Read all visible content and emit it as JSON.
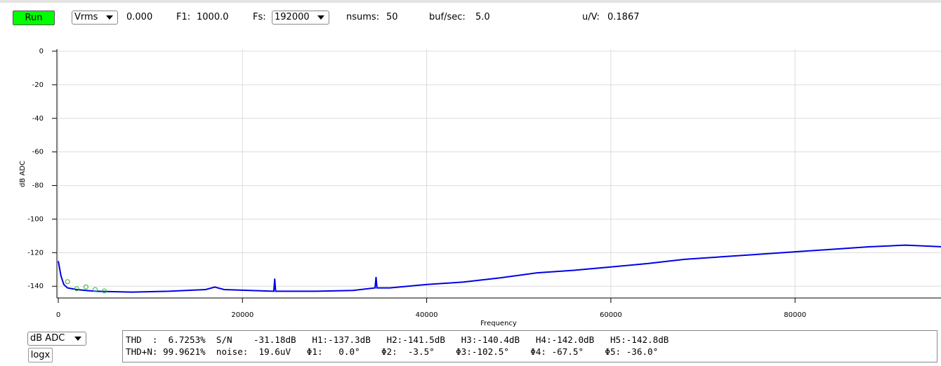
{
  "toolbar": {
    "run": "Run",
    "unit": "Vrms",
    "level": "0.000",
    "f1_label": "F1:",
    "f1": "1000.0",
    "fs_label": "Fs:",
    "fs": "192000",
    "nsums_label": "nsums:",
    "nsums": "50",
    "bufsec_label": "buf/sec:",
    "bufsec": "5.0",
    "uv_label": "u/V:",
    "uv": "0.1867"
  },
  "bottom": {
    "scale": "dB ADC",
    "logx": "logx",
    "stats": [
      "THD  :  6.7253%  S/N    -31.18dB   H1:-137.3dB   H2:-141.5dB   H3:-140.4dB   H4:-142.0dB   H5:-142.8dB",
      "THD+N: 99.9621%  noise:  19.6uV   Φ1:   0.0°    Φ2:  -3.5°    Φ3:-102.5°    Φ4: -67.5°    Φ5: -36.0°"
    ]
  },
  "chart_data": {
    "type": "line",
    "x_label": "Frequency",
    "y_label": "dB ADC",
    "xlim": [
      0,
      96000
    ],
    "ylim": [
      -147,
      0
    ],
    "xticks": [
      0,
      20000,
      40000,
      60000,
      80000
    ],
    "yticks": [
      0,
      -20,
      -40,
      -60,
      -80,
      -100,
      -120,
      -140
    ],
    "grid": true,
    "series": [
      {
        "color": "#0000e6",
        "mode": "line",
        "x": [
          0,
          300,
          600,
          1000,
          2000,
          4000,
          8000,
          12000,
          16000,
          17000,
          18000,
          23400,
          23500,
          23600,
          28000,
          32000,
          34400,
          34500,
          34600,
          36000,
          40000,
          44000,
          48000,
          52000,
          56000,
          60000,
          64000,
          68000,
          72000,
          76000,
          80000,
          84000,
          88000,
          92000,
          96000
        ],
        "values": [
          -125,
          -134,
          -139,
          -141,
          -142,
          -143,
          -143.5,
          -143,
          -142,
          -140.5,
          -142,
          -143,
          -135.5,
          -143,
          -143,
          -142.5,
          -141,
          -134.5,
          -141,
          -141,
          -139,
          -137.5,
          -135,
          -132,
          -130.5,
          -128.5,
          -126.5,
          -124,
          -122.5,
          -121,
          -119.5,
          -118,
          -116.5,
          -115.5,
          -116.5
        ]
      },
      {
        "color": "#22bb22",
        "mode": "markers",
        "x": [
          1000,
          2000,
          3000,
          4000,
          5000
        ],
        "values": [
          -137.3,
          -141.5,
          -140.4,
          -142.0,
          -142.8
        ]
      }
    ]
  }
}
